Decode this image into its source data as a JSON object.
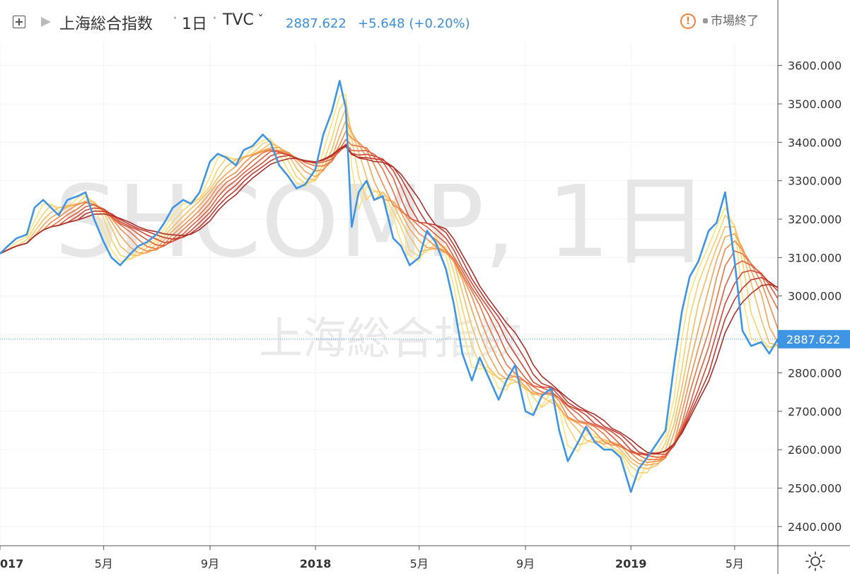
{
  "header": {
    "symbol_name": "上海総合指数",
    "interval": "1日",
    "source": "TVC",
    "source_chevron": "ˇ",
    "last_price": "2887.622",
    "change": "+5.648 (+0.20%)",
    "market_status": "市場終了",
    "warning_glyph": "!",
    "icons": [
      "expand-icon",
      "flag-icon",
      "chevron-down-icon",
      "warning-icon",
      "sun-icon"
    ]
  },
  "watermark": {
    "symbol": "SHCOMP, 1日",
    "name": "上海総合指数"
  },
  "colors": {
    "price_line": "#3e95e3",
    "ribbon": [
      "#fde37a",
      "#fbd26a",
      "#f8bd5e",
      "#f5a553",
      "#f08d4a",
      "#e97442",
      "#e05c3c",
      "#d24836",
      "#c13a30",
      "#aa2f2a"
    ],
    "axis_label": "#333333",
    "grid": "#f2f2f2",
    "last_price_label_bg": "#3e95e3"
  },
  "chart_data": {
    "type": "line",
    "title": "",
    "xlabel": "",
    "ylabel": "",
    "ylim": [
      2350,
      3660
    ],
    "xlim": [
      "2017-01-01",
      "2019-06-20"
    ],
    "y_ticks": [
      "2400.000",
      "2500.000",
      "2600.000",
      "2700.000",
      "2800.000",
      "2900.000",
      "3000.000",
      "3100.000",
      "3200.000",
      "3300.000",
      "3400.000",
      "3500.000",
      "3600.000"
    ],
    "y_tick_values": [
      2400,
      2500,
      2600,
      2700,
      2800,
      2900,
      3000,
      3100,
      3200,
      3300,
      3400,
      3500,
      3600
    ],
    "x_ticks": [
      {
        "label": "017",
        "date": "2017-01-01",
        "bold": true
      },
      {
        "label": "5月",
        "date": "2017-05-01",
        "bold": false
      },
      {
        "label": "9月",
        "date": "2017-09-01",
        "bold": false
      },
      {
        "label": "2018",
        "date": "2018-01-01",
        "bold": true
      },
      {
        "label": "5月",
        "date": "2018-05-01",
        "bold": false
      },
      {
        "label": "9月",
        "date": "2018-09-01",
        "bold": false
      },
      {
        "label": "2019",
        "date": "2019-01-01",
        "bold": true
      },
      {
        "label": "5月",
        "date": "2019-05-01",
        "bold": false
      }
    ],
    "last_value": 2887.622,
    "last_value_label": "2887.622",
    "grid": true,
    "series": [
      {
        "name": "上海総合指数",
        "x": [
          "2017-01-01",
          "2017-01-10",
          "2017-01-20",
          "2017-02-01",
          "2017-02-10",
          "2017-02-20",
          "2017-03-01",
          "2017-03-10",
          "2017-03-20",
          "2017-04-01",
          "2017-04-10",
          "2017-04-20",
          "2017-05-01",
          "2017-05-10",
          "2017-05-20",
          "2017-06-01",
          "2017-06-10",
          "2017-06-20",
          "2017-07-01",
          "2017-07-10",
          "2017-07-20",
          "2017-08-01",
          "2017-08-10",
          "2017-08-20",
          "2017-09-01",
          "2017-09-10",
          "2017-09-20",
          "2017-10-01",
          "2017-10-10",
          "2017-10-20",
          "2017-11-01",
          "2017-11-10",
          "2017-11-20",
          "2017-12-01",
          "2017-12-10",
          "2017-12-20",
          "2018-01-01",
          "2018-01-10",
          "2018-01-20",
          "2018-01-29",
          "2018-02-05",
          "2018-02-12",
          "2018-02-20",
          "2018-03-01",
          "2018-03-10",
          "2018-03-20",
          "2018-04-01",
          "2018-04-10",
          "2018-04-20",
          "2018-05-01",
          "2018-05-10",
          "2018-05-20",
          "2018-06-01",
          "2018-06-10",
          "2018-06-20",
          "2018-07-01",
          "2018-07-10",
          "2018-07-20",
          "2018-08-01",
          "2018-08-10",
          "2018-08-20",
          "2018-09-01",
          "2018-09-10",
          "2018-09-20",
          "2018-10-01",
          "2018-10-10",
          "2018-10-20",
          "2018-11-01",
          "2018-11-10",
          "2018-11-20",
          "2018-12-01",
          "2018-12-10",
          "2018-12-20",
          "2019-01-01",
          "2019-01-10",
          "2019-01-20",
          "2019-02-01",
          "2019-02-10",
          "2019-02-20",
          "2019-03-01",
          "2019-03-10",
          "2019-03-20",
          "2019-04-01",
          "2019-04-10",
          "2019-04-20",
          "2019-05-01",
          "2019-05-10",
          "2019-05-20",
          "2019-06-01",
          "2019-06-10",
          "2019-06-20"
        ],
        "values": [
          3110,
          3130,
          3150,
          3160,
          3230,
          3250,
          3230,
          3210,
          3250,
          3260,
          3270,
          3200,
          3140,
          3100,
          3080,
          3110,
          3130,
          3140,
          3160,
          3190,
          3230,
          3250,
          3240,
          3270,
          3350,
          3370,
          3360,
          3340,
          3380,
          3390,
          3420,
          3400,
          3340,
          3310,
          3280,
          3290,
          3330,
          3420,
          3480,
          3560,
          3490,
          3180,
          3270,
          3300,
          3250,
          3260,
          3150,
          3130,
          3080,
          3100,
          3170,
          3140,
          3070,
          2980,
          2850,
          2780,
          2840,
          2790,
          2730,
          2780,
          2820,
          2700,
          2690,
          2740,
          2760,
          2650,
          2570,
          2620,
          2660,
          2620,
          2600,
          2600,
          2580,
          2490,
          2550,
          2580,
          2620,
          2650,
          2820,
          2960,
          3050,
          3090,
          3170,
          3190,
          3270,
          3090,
          2910,
          2870,
          2880,
          2850,
          2888
        ]
      }
    ]
  }
}
